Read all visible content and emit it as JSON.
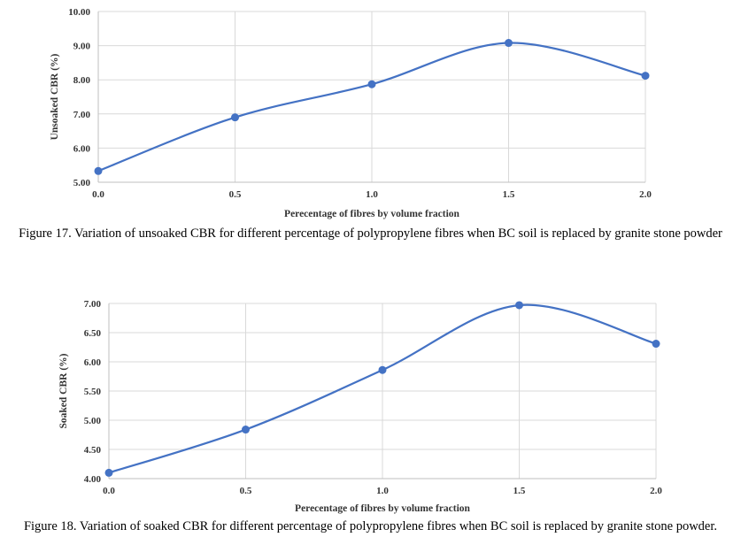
{
  "chart_data": [
    {
      "type": "line",
      "title": "",
      "xlabel": "Perecentage of fibres by volume fraction",
      "ylabel": "Unsoaked CBR (%)",
      "x": [
        "0.0",
        "0.5",
        "1.0",
        "1.5",
        "2.0"
      ],
      "series": [
        {
          "values": [
            5.33,
            6.9,
            7.87,
            9.08,
            8.12
          ]
        }
      ],
      "yticks": [
        "5.00",
        "6.00",
        "7.00",
        "8.00",
        "9.00",
        "10.00"
      ],
      "ylim": [
        5,
        10
      ],
      "grid": true,
      "smooth": true,
      "color": "#4472C4",
      "caption": "Figure 17. Variation of unsoaked CBR for different percentage of polypropylene fibres when BC soil is replaced by granite stone powder"
    },
    {
      "type": "line",
      "title": "",
      "xlabel": "Perecentage of fibres by volume fraction",
      "ylabel": "Soaked CBR (%)",
      "x": [
        "0.0",
        "0.5",
        "1.0",
        "1.5",
        "2.0"
      ],
      "series": [
        {
          "values": [
            4.1,
            4.84,
            5.86,
            6.97,
            6.31
          ]
        }
      ],
      "yticks": [
        "4.00",
        "4.50",
        "5.00",
        "5.50",
        "6.00",
        "6.50",
        "7.00"
      ],
      "ylim": [
        4,
        7
      ],
      "grid": true,
      "smooth": true,
      "color": "#4472C4",
      "caption": "Figure 18. Variation of soaked CBR for different percentage of polypropylene fibres when BC soil is replaced by granite stone powder."
    }
  ]
}
